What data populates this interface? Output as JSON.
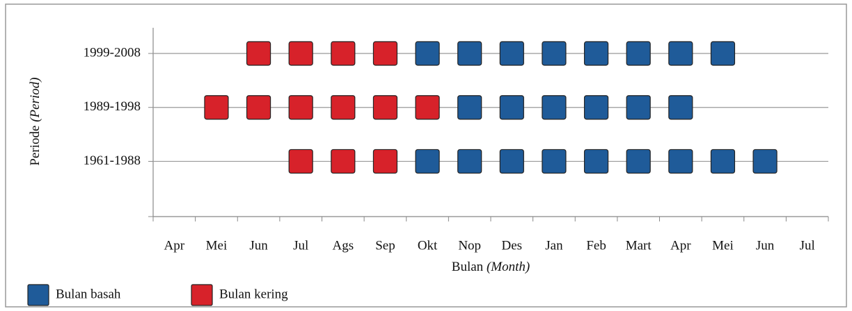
{
  "chart_data": {
    "type": "status-grid",
    "categories": [
      "Apr",
      "Mei",
      "Jun",
      "Jul",
      "Ags",
      "Sep",
      "Okt",
      "Nop",
      "Des",
      "Jan",
      "Feb",
      "Mart",
      "Apr",
      "Mei",
      "Jun",
      "Jul"
    ],
    "periods": [
      "1999-2008",
      "1989-1998",
      "1961-1988"
    ],
    "xlabel": [
      "Bulan",
      "(Month)"
    ],
    "ylabel": [
      "Periode",
      "(Period)"
    ],
    "grid": true,
    "series": [
      {
        "name": "Bulan basah",
        "color": "#1f5b99",
        "values": [
          [
            null,
            null,
            null,
            null,
            null,
            null,
            true,
            true,
            true,
            true,
            true,
            true,
            true,
            true,
            null,
            null
          ],
          [
            null,
            null,
            null,
            null,
            null,
            null,
            null,
            true,
            true,
            true,
            true,
            true,
            true,
            null,
            null,
            null
          ],
          [
            null,
            null,
            null,
            null,
            null,
            null,
            true,
            true,
            true,
            true,
            true,
            true,
            true,
            true,
            true,
            null
          ]
        ]
      },
      {
        "name": "Bulan kering",
        "color": "#d7222a",
        "values": [
          [
            null,
            null,
            true,
            true,
            true,
            true,
            null,
            null,
            null,
            null,
            null,
            null,
            null,
            null,
            null,
            null
          ],
          [
            null,
            true,
            true,
            true,
            true,
            true,
            true,
            null,
            null,
            null,
            null,
            null,
            null,
            null,
            null,
            null
          ],
          [
            null,
            null,
            null,
            true,
            true,
            true,
            null,
            null,
            null,
            null,
            null,
            null,
            null,
            null,
            null,
            null
          ]
        ]
      }
    ]
  }
}
